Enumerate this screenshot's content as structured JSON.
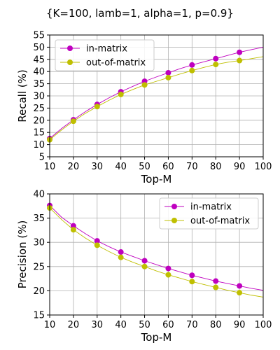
{
  "figure_title": "{K=100, lamb=1, alpha=1, p=0.9}",
  "colors": {
    "in_matrix": "#bf00bf",
    "out_of_matrix": "#bfbf00"
  },
  "chart_data": [
    {
      "type": "line",
      "title": "",
      "xlabel": "Top-M",
      "ylabel": "Recall (%)",
      "xlim": [
        10,
        100
      ],
      "ylim": [
        5,
        55
      ],
      "xticks": [
        10,
        20,
        30,
        40,
        50,
        60,
        70,
        80,
        90,
        100
      ],
      "yticks": [
        5,
        10,
        15,
        20,
        25,
        30,
        35,
        40,
        45,
        50,
        55
      ],
      "grid": true,
      "legend_position": "upper-left",
      "x": [
        10,
        20,
        30,
        40,
        50,
        60,
        70,
        80,
        90
      ],
      "curve_x": [
        10,
        15,
        20,
        25,
        30,
        35,
        40,
        45,
        50,
        55,
        60,
        65,
        70,
        75,
        80,
        85,
        90,
        95,
        100
      ],
      "series": [
        {
          "name": "in-matrix",
          "color": "#bf00bf",
          "values": [
            12.5,
            20.2,
            26.5,
            31.7,
            36.0,
            39.5,
            42.7,
            45.3,
            47.9
          ],
          "curve": [
            12.5,
            16.6,
            20.2,
            23.5,
            26.5,
            29.2,
            31.7,
            33.9,
            36.0,
            37.8,
            39.5,
            41.2,
            42.7,
            44.0,
            45.3,
            46.6,
            47.9,
            49.0,
            50.0
          ]
        },
        {
          "name": "out-of-matrix",
          "color": "#bfbf00",
          "values": [
            12.0,
            19.6,
            25.6,
            30.6,
            34.5,
            37.5,
            40.4,
            42.9,
            44.5
          ],
          "curve": [
            12.0,
            16.0,
            19.6,
            22.8,
            25.6,
            28.2,
            30.6,
            32.6,
            34.5,
            36.0,
            37.5,
            39.0,
            40.4,
            41.7,
            42.9,
            43.8,
            44.5,
            45.3,
            46.1
          ]
        }
      ]
    },
    {
      "type": "line",
      "title": "",
      "xlabel": "Top-M",
      "ylabel": "Precision (%)",
      "xlim": [
        10,
        100
      ],
      "ylim": [
        15,
        40
      ],
      "xticks": [
        10,
        20,
        30,
        40,
        50,
        60,
        70,
        80,
        90,
        100
      ],
      "yticks": [
        15,
        20,
        25,
        30,
        35,
        40
      ],
      "grid": true,
      "legend_position": "upper-right",
      "x": [
        10,
        20,
        30,
        40,
        50,
        60,
        70,
        80,
        90
      ],
      "curve_x": [
        10,
        15,
        20,
        25,
        30,
        35,
        40,
        45,
        50,
        55,
        60,
        65,
        70,
        75,
        80,
        85,
        90,
        95,
        100
      ],
      "series": [
        {
          "name": "in-matrix",
          "color": "#bf00bf",
          "values": [
            37.6,
            33.4,
            30.3,
            28.0,
            26.2,
            24.6,
            23.2,
            22.0,
            21.0
          ],
          "curve": [
            37.6,
            35.2,
            33.4,
            31.8,
            30.3,
            29.1,
            28.0,
            27.1,
            26.2,
            25.4,
            24.6,
            23.9,
            23.2,
            22.6,
            22.0,
            21.5,
            21.0,
            20.5,
            20.1
          ]
        },
        {
          "name": "out-of-matrix",
          "color": "#bfbf00",
          "values": [
            37.1,
            32.6,
            29.4,
            26.9,
            25.0,
            23.3,
            21.9,
            20.7,
            19.6
          ],
          "curve": [
            37.1,
            34.7,
            32.6,
            30.9,
            29.4,
            28.1,
            26.9,
            25.9,
            25.0,
            24.1,
            23.3,
            22.6,
            21.9,
            21.3,
            20.7,
            20.1,
            19.6,
            19.1,
            18.7
          ]
        }
      ]
    }
  ]
}
